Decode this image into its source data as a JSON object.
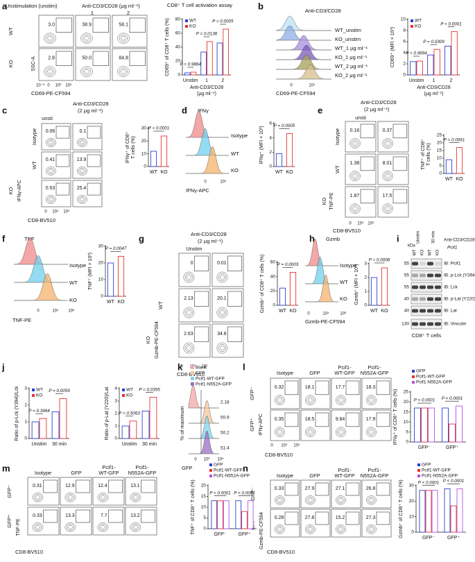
{
  "panels": [
    {
      "labels": [
        "a",
        "Unstimulation (unstim)",
        "Anti-CD3/CD28 (μg ml⁻¹)",
        "1",
        "2",
        "WT",
        "KO",
        "SSC-A",
        "10⁻³",
        "0",
        "10³",
        "10⁵",
        "CD69-PE-CF594"
      ],
      "gates": [
        [
          "3.0",
          "38.9",
          "58.1"
        ],
        [
          "2.8",
          "50.0",
          "84.8"
        ]
      ]
    },
    {
      "labels": [
        "b",
        "Anti-CD3/CD28",
        "WT_unstim",
        "KO_unstim",
        "WT_1 μg ml⁻¹",
        "KO_1 μg ml⁻¹",
        "WT_2 μg ml⁻¹",
        "KO_2 μg ml⁻¹",
        "0",
        "10⁴",
        "CD69-PE-CF594"
      ]
    },
    {
      "labels": [
        "c",
        "Anti-CD3/CD28",
        "(2 μg ml⁻¹)",
        "unsti",
        "Isotype",
        "WT",
        "KO",
        "IFNγ-APC",
        "0",
        "10⁴",
        "10⁵",
        "CD8-BV510"
      ],
      "gates": [
        [
          "0.06",
          "0.1"
        ],
        [
          "0.41",
          "13.9"
        ],
        [
          "0.53",
          "25.4"
        ]
      ]
    },
    {
      "labels": [
        "d",
        "IFNγ",
        "Isotype",
        "WT",
        "KO",
        "0",
        "10⁴",
        "IFNγ-APC"
      ]
    },
    {
      "labels": [
        "e",
        "Anti-CD3/CD28",
        "(2 μg ml⁻¹)",
        "unsti",
        "Isotype",
        "WT",
        "KO",
        "TNF-PE",
        "0",
        "10⁴",
        "10⁵",
        "CD8-BV510"
      ],
      "gates": [
        [
          "0.16",
          "0.37"
        ],
        [
          "1.38",
          "8.01"
        ],
        [
          "1.87",
          "17.5"
        ]
      ]
    },
    {
      "labels": [
        "f",
        "TNF",
        "Isotype",
        "WT",
        "KO",
        "0",
        "10⁴",
        "10⁶",
        "TNF-PE"
      ]
    },
    {
      "labels": [
        "g",
        "Anti-CD3/CD28",
        "(2 μg ml⁻¹)",
        "Unstim",
        "WT",
        "KO",
        "Gzmb-PE-CF594",
        "0",
        "10⁴",
        "10⁵",
        "CD8-BV510"
      ],
      "gates": [
        [
          "0",
          "0.01"
        ],
        [
          "2.13",
          "20.1"
        ],
        [
          "2.63",
          "34.8"
        ]
      ]
    },
    {
      "labels": [
        "h",
        "Gzmb",
        "Isotype",
        "WT",
        "KO",
        "0",
        "10⁴",
        "10⁶",
        "Gzmb-PE-CF594"
      ]
    },
    {
      "labels": [
        "i",
        "kDa",
        "Unstim",
        "30 min",
        "Anti-CD3/CD28",
        "WT",
        "KO",
        "WT",
        "KO",
        "Pcif1",
        "55",
        "55",
        "55",
        "40",
        "40",
        "130",
        "IB: Pcif1",
        "IB: p-Lck (Y394)",
        "IB: Lck",
        "IB: p-Lat (Y220)",
        "IB: Lat",
        "IB: Vinculin",
        "CD8⁺ T cells"
      ]
    },
    {
      "labels": [
        "j"
      ]
    },
    {
      "labels": [
        "k",
        "Blank",
        "GFP",
        "Pcif1-WT-GFP",
        "Pcif1-N552A-GFP",
        "2.18",
        "50.9",
        "50.2",
        "51.4",
        "% of maximum",
        "0",
        "10³",
        "10⁵",
        "GFP"
      ]
    },
    {
      "labels": [
        "l",
        "Isotype",
        "GFP",
        "Pcif1-",
        "WT-GFP",
        "Pcif1-",
        "N552A-GFP",
        "GFP⁻",
        "GFP⁺",
        "IFNγ-APC",
        "0",
        "10⁴",
        "10⁵",
        "CD8-BV510"
      ],
      "gates": [
        [
          "0.32",
          "18.1",
          "17.7",
          "18.3"
        ],
        [
          "0.35",
          "18.5",
          "9.84",
          "17.9"
        ]
      ]
    },
    {
      "labels": [
        "m",
        "Isotype",
        "GFP",
        "Pcif1-",
        "WT-GFP",
        "Pcif1-",
        "N552A-GFP",
        "GFP⁻",
        "GFP⁺",
        "TNF-PE",
        "CD8-BV510"
      ],
      "gates": [
        [
          "0.31",
          "12.9",
          "12.4",
          "13.1"
        ],
        [
          "0.33",
          "13.3",
          "7.7",
          "13.2"
        ]
      ]
    },
    {
      "labels": [
        "n",
        "Isotype",
        "GFP",
        "Pcif1-",
        "WT-GFP",
        "Pcif1-",
        "N552A-GFP",
        "GFP⁻",
        "GFP⁺",
        "Gzmb-PE-CF594",
        "CD8-BV510"
      ],
      "gates": [
        [
          "0.33",
          "27.9",
          "27.1",
          "26.8"
        ],
        [
          "0.28",
          "27.8",
          "15.2",
          "27.3"
        ]
      ]
    }
  ],
  "chart_data": [
    {
      "type": "bar",
      "title": "CD8⁺ T cell activation assay",
      "ylabel": [
        "CD69⁺ of CD8⁺ T cells (%)"
      ],
      "xlabel": [
        "Anti-CD3/CD28",
        "(μg ml⁻¹)"
      ],
      "categories": [
        "Unstim",
        "1",
        "2"
      ],
      "series": [
        {
          "name": "WT",
          "color": "#2b3fd1",
          "values": [
            3,
            33,
            46
          ]
        },
        {
          "name": "KO",
          "color": "#e8312f",
          "values": [
            4,
            48,
            66
          ]
        }
      ],
      "ylim": [
        0,
        80
      ],
      "yticks": [
        0,
        20,
        40,
        60,
        80
      ],
      "legend": "upper left",
      "annotations": [
        "P = 0.9864",
        "P = 0.0136",
        "P = 0.0005"
      ]
    },
    {
      "type": "bar",
      "ylabel": [
        "CD69⁺ (MFI × 10³)"
      ],
      "xlabel": [
        "Anti-CD3/CD28",
        "(μg ml⁻¹)"
      ],
      "categories": [
        "Unstim",
        "1",
        "2"
      ],
      "series": [
        {
          "name": "WT",
          "color": "#2b3fd1",
          "values": [
            2.4,
            3.6,
            5.2
          ]
        },
        {
          "name": "KO",
          "color": "#e8312f",
          "values": [
            2.5,
            4.6,
            7.8
          ]
        }
      ],
      "ylim": [
        0,
        10
      ],
      "yticks": [
        0,
        2,
        4,
        6,
        8,
        10
      ],
      "legend": "upper left",
      "annotations": [
        "P = 0.9694",
        "P = 0.0309",
        "P < 0.0001"
      ]
    },
    {
      "type": "bar",
      "ylabel": [
        "IFNγ⁺ of CD8⁺",
        "T cells (%)"
      ],
      "categories": [
        "WT",
        "KO"
      ],
      "values": [
        12,
        24
      ],
      "colors": [
        "#2b3fd1",
        "#e8312f"
      ],
      "ylim": [
        0,
        30
      ],
      "yticks": [
        0,
        10,
        20,
        30
      ],
      "annotations": [
        "P = 0.0001"
      ]
    },
    {
      "type": "bar",
      "ylabel": [
        "IFNγ⁺ (MFI × 10³)"
      ],
      "categories": [
        "WT",
        "KO"
      ],
      "values": [
        1.8,
        4.6
      ],
      "colors": [
        "#2b3fd1",
        "#e8312f"
      ],
      "ylim": [
        0,
        6
      ],
      "yticks": [
        0,
        2,
        4,
        6
      ],
      "annotations": [
        "P = 0.0005"
      ]
    },
    {
      "type": "bar",
      "ylabel": [
        "TNF⁺ of CD8⁺",
        "T cells (%)"
      ],
      "categories": [
        "WT",
        "KO"
      ],
      "values": [
        9,
        17
      ],
      "colors": [
        "#2b3fd1",
        "#e8312f"
      ],
      "ylim": [
        0,
        25
      ],
      "yticks": [
        0,
        5,
        10,
        15,
        20,
        25
      ],
      "annotations": [
        "P = 0.0061"
      ]
    },
    {
      "type": "bar",
      "ylabel": [
        "TNF⁺ (MFI × 10³)"
      ],
      "categories": [
        "WT",
        "KO"
      ],
      "values": [
        20,
        24
      ],
      "colors": [
        "#2b3fd1",
        "#e8312f"
      ],
      "ylim": [
        0,
        30
      ],
      "yticks": [
        0,
        10,
        20,
        30
      ],
      "annotations": [
        "P = 0.0047"
      ]
    },
    {
      "type": "bar",
      "ylabel": [
        "Gzmb⁺ of CD8⁺ T cells (%)"
      ],
      "categories": [
        "WT",
        "KO"
      ],
      "values": [
        24,
        46
      ],
      "colors": [
        "#2b3fd1",
        "#e8312f"
      ],
      "ylim": [
        0,
        60
      ],
      "yticks": [
        0,
        20,
        40,
        60
      ],
      "annotations": [
        "P = 0.0003"
      ]
    },
    {
      "type": "bar",
      "ylabel": [
        "Gzmb⁺ (MFI × 10³)"
      ],
      "categories": [
        "WT",
        "KO"
      ],
      "values": [
        2.0,
        2.7
      ],
      "colors": [
        "#2b3fd1",
        "#e8312f"
      ],
      "ylim": [
        0,
        3
      ],
      "yticks": [
        0,
        1,
        2,
        3
      ],
      "annotations": [
        "P = 0.0008"
      ]
    },
    {
      "type": "bar",
      "ylabel": [
        "Ratio of p-Lck (Y394)/Lck"
      ],
      "categories": [
        "Unstim",
        "30 min"
      ],
      "series": [
        {
          "name": "WT",
          "color": "#2b3fd1",
          "values": [
            1.0,
            1.6
          ]
        },
        {
          "name": "KO",
          "color": "#e8312f",
          "values": [
            1.2,
            2.4
          ]
        }
      ],
      "ylim": [
        0,
        3
      ],
      "yticks": [
        0,
        1,
        2,
        3
      ],
      "legend": "upper left",
      "annotations": [
        "P = 0.3964",
        "P = 0.0059"
      ]
    },
    {
      "type": "bar",
      "ylabel": [
        "Ratio of p-Lat (Y220)/Lat"
      ],
      "categories": [
        "Unstim",
        "30 min"
      ],
      "series": [
        {
          "name": "WT",
          "color": "#2b3fd1",
          "values": [
            1.0,
            2.2
          ]
        },
        {
          "name": "KO",
          "color": "#e8312f",
          "values": [
            1.4,
            3.3
          ]
        }
      ],
      "ylim": [
        0,
        4
      ],
      "yticks": [
        0,
        1,
        2,
        3,
        4
      ],
      "legend": "upper left",
      "annotations": [
        "P = 0.5063",
        "P = 0.0355"
      ]
    },
    {
      "type": "bar",
      "ylabel": [
        "IFNγ⁺ of CD8⁺ T cells (%)"
      ],
      "categories": [
        "GFP⁻",
        "GFP⁺"
      ],
      "series": [
        {
          "name": "GFP",
          "color": "#2b3fd1",
          "values": [
            17,
            17
          ]
        },
        {
          "name": "Pcif1-WT-GFP",
          "color": "#e8312f",
          "values": [
            17,
            9
          ]
        },
        {
          "name": "Pcif1-N552A-GFP",
          "color": "#b44fe0",
          "values": [
            17,
            18
          ]
        }
      ],
      "ylim": [
        0,
        25
      ],
      "yticks": [
        0,
        5,
        10,
        15,
        20,
        25
      ],
      "legend": "top",
      "annotations": [
        "P < 0.0001",
        "P < 0.0001"
      ]
    },
    {
      "type": "bar",
      "ylabel": [
        "TNF⁺ of CD8⁺ T cells (%)"
      ],
      "categories": [
        "GFP⁻",
        "GFP⁺"
      ],
      "series": [
        {
          "name": "GFP",
          "color": "#2b3fd1",
          "values": [
            13,
            13
          ]
        },
        {
          "name": "Pcif1-WT-GFP",
          "color": "#e8312f",
          "values": [
            13,
            8
          ]
        },
        {
          "name": "Pcif1-N552A-GFP",
          "color": "#b44fe0",
          "values": [
            13,
            13
          ]
        }
      ],
      "ylim": [
        0,
        20
      ],
      "yticks": [
        0,
        5,
        10,
        15,
        20
      ],
      "legend": "top",
      "annotations": [
        "P < 0.0001",
        "P < 0.0001"
      ]
    },
    {
      "type": "bar",
      "ylabel": [
        "Gzmb⁺ of CD8⁺ T cells (%)"
      ],
      "categories": [
        "GFP⁻",
        "GFP⁺"
      ],
      "series": [
        {
          "name": "GFP",
          "color": "#2b3fd1",
          "values": [
            27,
            28
          ]
        },
        {
          "name": "Pcif1-WT-GFP",
          "color": "#e8312f",
          "values": [
            27,
            17
          ]
        },
        {
          "name": "Pcif1-N552A-GFP",
          "color": "#b44fe0",
          "values": [
            27,
            28
          ]
        }
      ],
      "ylim": [
        0,
        30
      ],
      "yticks": [
        0,
        10,
        20,
        30
      ],
      "legend": "top",
      "annotations": [
        "P < 0.0001",
        "P < 0.0001"
      ]
    }
  ]
}
